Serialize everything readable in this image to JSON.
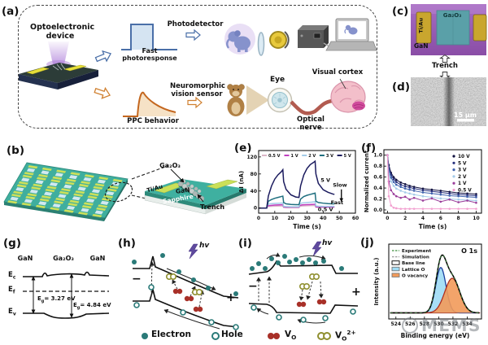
{
  "labels": {
    "a": "(a)",
    "b": "(b)",
    "c": "(c)",
    "d": "(d)",
    "e": "(e)",
    "f": "(f)",
    "g": "(g)",
    "h": "(h)",
    "i": "(i)",
    "j": "(j)"
  },
  "panel_a": {
    "device_line1": "Optoelectronic",
    "device_line2": "device",
    "fast_photoresponse": "Fast photoresponse",
    "photodetector": "Photodetector",
    "ppc_behavior": "PPC behavior",
    "neuro_line1": "Neuromorphic",
    "neuro_line2": "vision sensor",
    "eye": "Eye",
    "optical_nerve": "Optical nerve",
    "visual_cortex": "Visual cortex"
  },
  "panel_b": {
    "ga2o3": "Ga₂O₃",
    "tiau": "Ti/Au",
    "gan": "GaN",
    "sapphire": "Sapphire",
    "trench": "Trench"
  },
  "panel_c": {
    "tiau": "Ti/Au",
    "ga2o3": "Ga₂O₃",
    "gan": "GaN",
    "trench": "Trench"
  },
  "panel_d": {
    "scale_bar": "15 μm"
  },
  "panel_g": {
    "mat_left": "GaN",
    "mat_center": "Ga₂O₃",
    "mat_right": "GaN",
    "e_sym": "E",
    "sub_c": "c",
    "sub_f": "f",
    "sub_v": "v",
    "sub_g": "g",
    "eg_gan": "= 3.27 eV",
    "eg_ga2o3": "= 4.84 eV"
  },
  "panel_h": {
    "hv": "hv",
    "minus": "−",
    "plus": "+"
  },
  "panel_i": {
    "hv": "hv",
    "minus": "−",
    "plus": "+"
  },
  "carrier_legend": {
    "electron": "Electron",
    "hole": "Hole",
    "v_sym": "V",
    "sub_o": "O",
    "sup_2plus": "2+"
  },
  "watermark": "MEMS",
  "chart_data": [
    {
      "id": "chart-e",
      "type": "line",
      "markers": false,
      "title": "",
      "xlabel": "Time (s)",
      "ylabel": "ΔI (nA)",
      "xlim": [
        0,
        60
      ],
      "ylim": [
        -12,
        135
      ],
      "xticks": [
        0,
        10,
        20,
        30,
        40,
        50,
        60
      ],
      "xtick_labels": [
        "0",
        "10",
        "20",
        "30",
        "40",
        "50",
        "60"
      ],
      "yticks": [
        0,
        40,
        80,
        120
      ],
      "ytick_labels": [
        "0",
        "40",
        "80",
        "120"
      ],
      "margins": {
        "l": 26,
        "t": 4,
        "r": 7,
        "b": 22
      },
      "legend": "top-row",
      "grid": false,
      "series": [
        {
          "name": "0.5 V",
          "color": "#dcb6c8",
          "x": [
            0,
            5,
            5.5,
            7,
            10,
            13,
            15,
            15.5,
            17,
            20,
            25,
            25.5,
            27,
            30,
            33,
            35,
            35.5,
            37,
            40,
            44,
            47
          ],
          "y": [
            0,
            0,
            3,
            4,
            4.5,
            5,
            5,
            1.5,
            1,
            1,
            1,
            4,
            5,
            5.5,
            6,
            6,
            2,
            1.5,
            1.5,
            1.5,
            1.5
          ]
        },
        {
          "name": "1 V",
          "color": "#bf3fbf",
          "x": [
            0,
            5,
            5.5,
            7,
            10,
            13,
            15,
            15.5,
            17,
            20,
            25,
            25.5,
            27,
            30,
            33,
            35,
            35.5,
            37,
            40,
            44,
            47
          ],
          "y": [
            0,
            0,
            5,
            6,
            7,
            7.5,
            8,
            2.5,
            2,
            2,
            2,
            6,
            7.5,
            8,
            8.5,
            9,
            3,
            2.5,
            2.5,
            2.5,
            2.5
          ]
        },
        {
          "name": "2 V",
          "color": "#a3cbe8",
          "x": [
            0,
            5,
            5.5,
            7,
            10,
            13,
            15,
            15.5,
            17,
            20,
            25,
            25.5,
            27,
            30,
            33,
            35,
            35.5,
            37,
            40,
            44,
            47
          ],
          "y": [
            0,
            0,
            8,
            10,
            11,
            11.5,
            12,
            4,
            3.5,
            3,
            3,
            10,
            12,
            13,
            14,
            15,
            5,
            4.5,
            4,
            4,
            4
          ]
        },
        {
          "name": "3 V",
          "color": "#1f6f7f",
          "x": [
            0,
            5,
            6,
            8,
            10,
            12,
            14,
            15,
            15.5,
            17,
            20,
            23,
            25,
            26,
            28,
            30,
            32,
            34,
            35,
            35.5,
            37,
            40,
            43,
            46,
            47
          ],
          "y": [
            0,
            0,
            16,
            20,
            23,
            25,
            27,
            28,
            13,
            10,
            8.5,
            8,
            8,
            21,
            27,
            30,
            32,
            34,
            35,
            16,
            13,
            11.5,
            10.5,
            10,
            10
          ]
        },
        {
          "name": "5 V",
          "color": "#1b1b5e",
          "x": [
            0,
            5,
            6,
            8,
            10,
            12,
            14,
            15,
            15.5,
            17,
            20,
            23,
            25,
            26,
            28,
            30,
            32,
            34,
            35,
            35.5,
            37,
            40,
            43,
            46,
            47
          ],
          "y": [
            0,
            0,
            28,
            52,
            68,
            78,
            85,
            90,
            62,
            44,
            31,
            26,
            25,
            52,
            78,
            93,
            102,
            107,
            110,
            80,
            58,
            43,
            37,
            33,
            32
          ]
        }
      ],
      "annotations": [
        {
          "text": "5 V",
          "fx": 0.69,
          "fy": 0.5
        },
        {
          "text": "Slow",
          "fx": 0.84,
          "fy": 0.58
        },
        {
          "text": "Fast",
          "fx": 0.81,
          "fy": 0.86
        },
        {
          "text": "0.5 V",
          "fx": 0.69,
          "fy": 0.97
        }
      ],
      "arrows": [
        {
          "fx": 0.855,
          "fy1": 0.62,
          "fy2": 0.82
        }
      ]
    },
    {
      "id": "chart-f",
      "type": "line",
      "markers": true,
      "title": "",
      "xlabel": "Time (s)",
      "ylabel": "Normalized current",
      "xlim": [
        -0.4,
        10.6
      ],
      "ylim": [
        -0.06,
        1.1
      ],
      "xticks": [
        0,
        2,
        4,
        6,
        8,
        10
      ],
      "xtick_labels": [
        "0",
        "2",
        "4",
        "6",
        "8",
        "10"
      ],
      "yticks": [
        0,
        0.2,
        0.4,
        0.6,
        0.8,
        1.0
      ],
      "ytick_labels": [
        "0.0",
        "0.2",
        "0.4",
        "0.6",
        "0.8",
        "1.0"
      ],
      "margins": {
        "l": 26,
        "t": 3,
        "r": 6,
        "b": 22
      },
      "legend": "right-list",
      "grid": false,
      "x": [
        0,
        0.15,
        0.4,
        0.7,
        1,
        1.5,
        2,
        2.5,
        3,
        4,
        5,
        6,
        7,
        8,
        9,
        10
      ],
      "series": [
        {
          "name": "10 V",
          "color": "#11113f",
          "y": [
            1.0,
            0.82,
            0.68,
            0.6,
            0.55,
            0.5,
            0.47,
            0.44,
            0.42,
            0.39,
            0.37,
            0.35,
            0.33,
            0.31,
            0.3,
            0.29
          ]
        },
        {
          "name": "5 V",
          "color": "#26307d",
          "y": [
            1.0,
            0.78,
            0.64,
            0.56,
            0.51,
            0.46,
            0.43,
            0.41,
            0.39,
            0.36,
            0.34,
            0.32,
            0.3,
            0.28,
            0.27,
            0.26
          ]
        },
        {
          "name": "3 V",
          "color": "#3f62ae",
          "y": [
            1.0,
            0.73,
            0.59,
            0.51,
            0.46,
            0.42,
            0.39,
            0.37,
            0.35,
            0.32,
            0.3,
            0.28,
            0.26,
            0.25,
            0.24,
            0.23
          ]
        },
        {
          "name": "2 V",
          "color": "#a5cbe9",
          "y": [
            1.0,
            0.66,
            0.52,
            0.44,
            0.39,
            0.35,
            0.32,
            0.3,
            0.28,
            0.25,
            0.23,
            0.21,
            0.2,
            0.19,
            0.18,
            0.17
          ]
        },
        {
          "name": "1 V",
          "color": "#9b3f9b",
          "y": [
            1.0,
            0.52,
            0.36,
            0.29,
            0.25,
            0.22,
            0.24,
            0.19,
            0.22,
            0.17,
            0.21,
            0.15,
            0.19,
            0.14,
            0.17,
            0.13
          ]
        },
        {
          "name": "0.5 V",
          "color": "#f2a0d0",
          "y": [
            1.0,
            0.25,
            0.08,
            0.04,
            0.03,
            0.02,
            0.02,
            0.02,
            0.02,
            0.02,
            0.02,
            0.02,
            0.02,
            0.02,
            0.02,
            0.02
          ]
        }
      ]
    },
    {
      "id": "chart-j",
      "type": "xps",
      "title": "",
      "xlabel": "Binding energy (eV)",
      "ylabel": "Intensity (a.u.)",
      "xlim": [
        523,
        536
      ],
      "ylim": [
        -0.1,
        1.5
      ],
      "xticks": [
        524,
        526,
        528,
        530,
        532,
        534
      ],
      "xtick_labels": [
        "524",
        "526",
        "528",
        "530",
        "532",
        "534"
      ],
      "yticks": [],
      "ytick_labels": [],
      "margins": {
        "l": 20,
        "t": 4,
        "r": 6,
        "b": 26
      },
      "corner_label": "O 1s",
      "legend": "left-list",
      "grid": false,
      "baseline": 0.03,
      "components": [
        {
          "name": "Lattice O",
          "center": 530.3,
          "sigma": 0.72,
          "amp": 0.97,
          "fill": "#9fdcf5",
          "stroke": "#1c3f9e"
        },
        {
          "name": "O vacancy",
          "center": 531.9,
          "sigma": 1.05,
          "amp": 0.74,
          "fill": "#f29a5a",
          "stroke": "#b03020"
        }
      ],
      "legend_items": [
        {
          "label": "Experiment",
          "marker": "dash",
          "color": "#3f8f3f"
        },
        {
          "label": "Simulation",
          "marker": "dash",
          "color": "#9a9a9a"
        },
        {
          "label": "Base line",
          "marker": "box",
          "fill": "#ffffff",
          "stroke": "#000000"
        },
        {
          "label": "Lattice O",
          "marker": "box",
          "fill": "#9fdcf5",
          "stroke": "#777777"
        },
        {
          "label": "O vacancy",
          "marker": "box",
          "fill": "#f29a5a",
          "stroke": "#777777"
        }
      ]
    }
  ]
}
